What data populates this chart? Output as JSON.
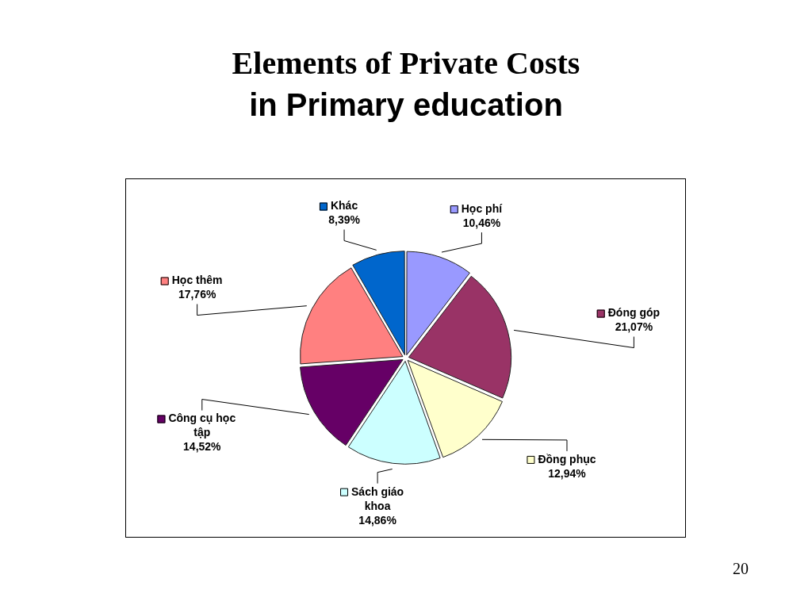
{
  "chart_data": {
    "type": "pie",
    "title": "Elements of Private Costs",
    "subtitle": "in Primary education",
    "categories": [
      "Học phí",
      "Đóng góp",
      "Đồng phục",
      "Sách giáo khoa",
      "Công cụ học tập",
      "Học thêm",
      "Khác"
    ],
    "values": [
      10.46,
      21.07,
      12.94,
      14.86,
      14.52,
      17.76,
      8.39
    ],
    "colors": [
      "#9999ff",
      "#993366",
      "#ffffcc",
      "#ccffff",
      "#660066",
      "#ff8080",
      "#0066cc"
    ],
    "value_labels": [
      "10,46%",
      "21,07%",
      "12,94%",
      "14,86%",
      "14,52%",
      "17,76%",
      "8,39%"
    ],
    "legend": true,
    "annotations": [
      "20"
    ]
  }
}
